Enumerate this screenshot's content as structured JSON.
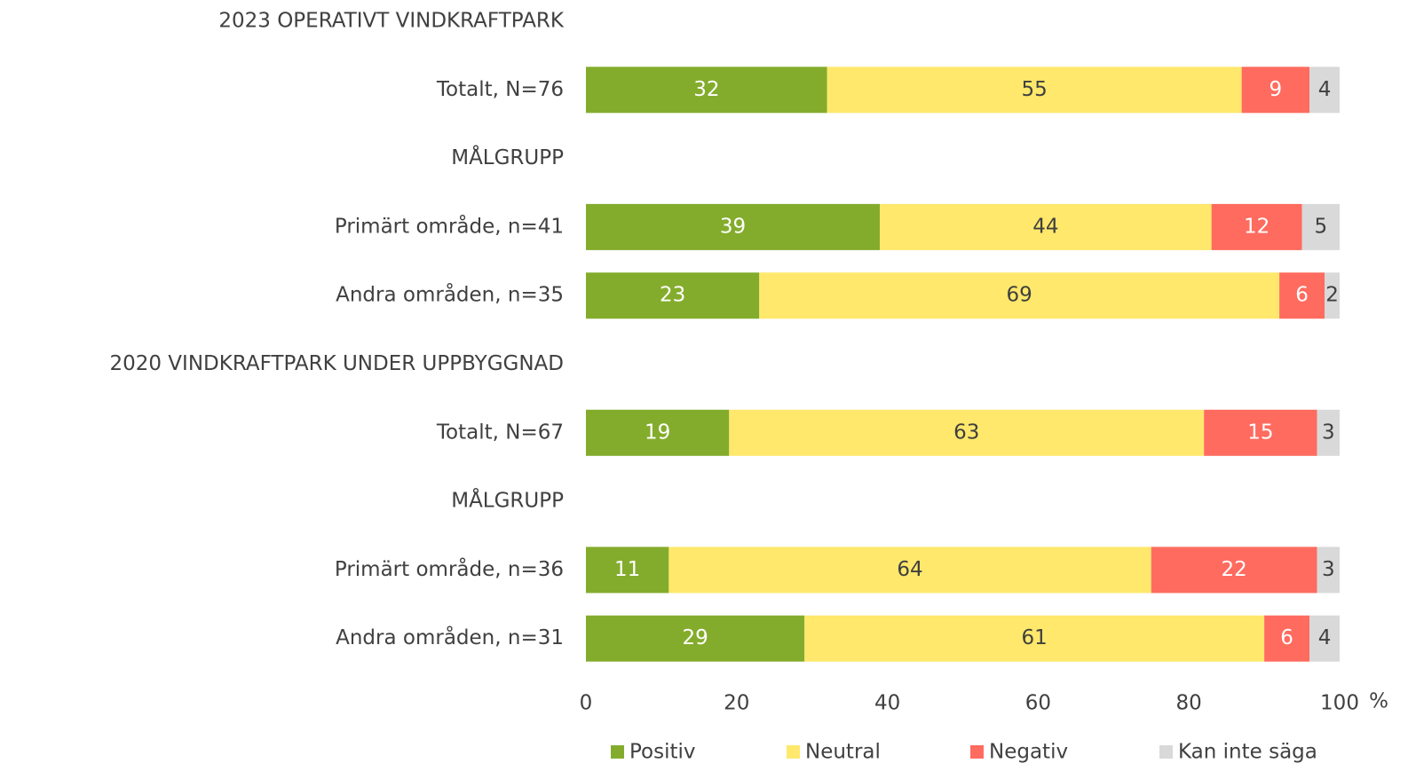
{
  "chart_data": {
    "type": "stacked_barh",
    "categories": [
      "2023 OPERATIVT VINDKRAFTPARK",
      "Totalt, N=76",
      "MÅLGRUPP",
      "Primärt område, n=41",
      "Andra områden, n=35",
      "2020 VINDKRAFTPARK UNDER UPPBYGGNAD",
      "Totalt, N=67",
      "MÅLGRUPP",
      "Primärt område, n=36",
      "Andra områden, n=31"
    ],
    "series": [
      {
        "name": "Positiv",
        "color": "#84ac2c",
        "label_color": "#ffffff",
        "values": [
          null,
          32,
          null,
          39,
          23,
          null,
          19,
          null,
          11,
          29
        ]
      },
      {
        "name": "Neutral",
        "color": "#ffe86b",
        "label_color": "#404040",
        "values": [
          null,
          55,
          null,
          44,
          69,
          null,
          63,
          null,
          64,
          61
        ]
      },
      {
        "name": "Negativ",
        "color": "#ff6b5f",
        "label_color": "#ffffff",
        "values": [
          null,
          9,
          null,
          12,
          6,
          null,
          15,
          null,
          22,
          6
        ]
      },
      {
        "name": "Kan inte säga",
        "color": "#d9d9d9",
        "label_color": "#404040",
        "values": [
          null,
          4,
          null,
          5,
          2,
          null,
          3,
          null,
          3,
          4
        ]
      }
    ],
    "xlim": [
      0,
      100
    ],
    "xticks": [
      0,
      20,
      40,
      60,
      80,
      100
    ],
    "xlabel": "%",
    "legend": "bottom"
  }
}
